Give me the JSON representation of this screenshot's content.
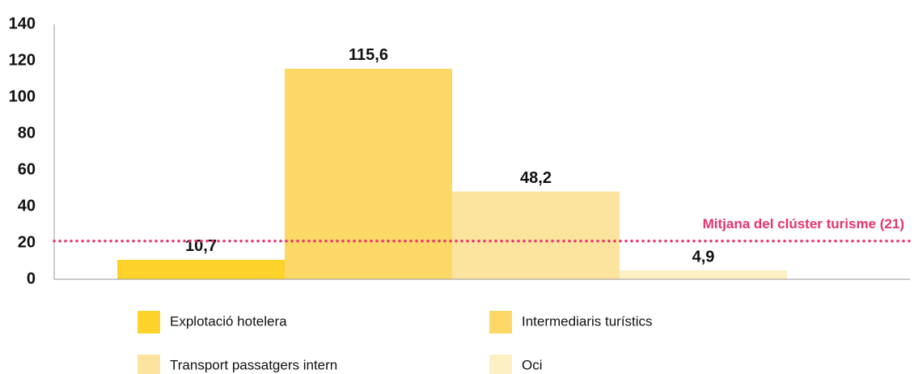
{
  "chart_data": {
    "type": "bar",
    "series": [
      {
        "name": "Explotació hotelera",
        "color": "#fdd22a",
        "values": [
          10.7
        ],
        "value_labels": [
          "10,7"
        ]
      },
      {
        "name": "Intermediaris turístics",
        "color": "#fcd966",
        "values": [
          115.6
        ],
        "value_labels": [
          "115,6"
        ]
      },
      {
        "name": "Transport passatgers intern",
        "color": "#fde49e",
        "values": [
          48.2
        ],
        "value_labels": [
          "48,2"
        ]
      },
      {
        "name": "Oci",
        "color": "#fdf0c4",
        "values": [
          4.9
        ],
        "value_labels": [
          "4,9"
        ]
      }
    ],
    "ylim": [
      0,
      140
    ],
    "yticks": [
      0,
      20,
      40,
      60,
      80,
      100,
      120,
      140
    ],
    "reference_line": {
      "value": 21,
      "label": "Mitjana del clúster turisme (21)",
      "color": "#e8336d"
    }
  }
}
